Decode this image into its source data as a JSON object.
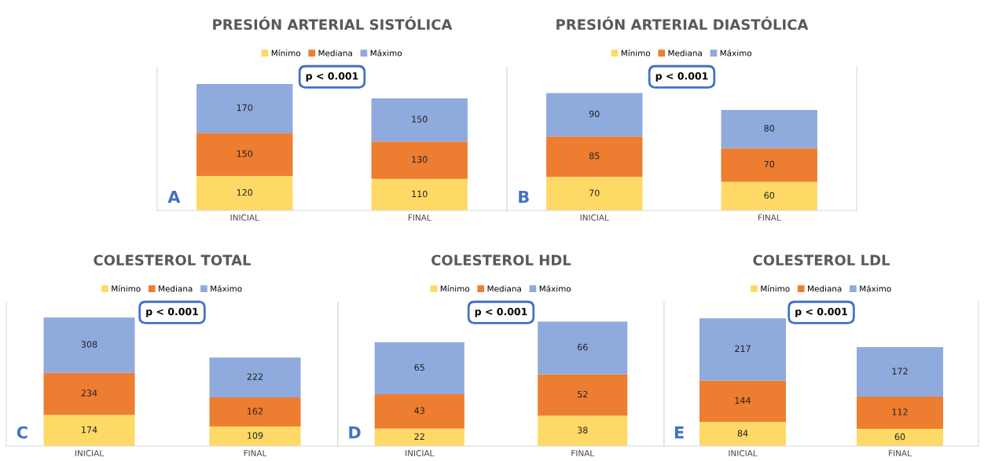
{
  "chart_data": [
    {
      "type": "bar",
      "title": "PRESIÓN ARTERIAL SISTÓLICA",
      "categories": [
        "INICIAL",
        "FINAL"
      ],
      "stacked": true,
      "data_labels": true,
      "legend": "top",
      "tick_labels": "x",
      "ylim": [
        0,
        500
      ],
      "annotations": [
        "A",
        "p < 0.001"
      ],
      "series": [
        {
          "name": "Mínimo",
          "color": "#ffd966",
          "values": [
            120,
            110
          ]
        },
        {
          "name": "Mediana",
          "color": "#ed7d31",
          "values": [
            150,
            130
          ]
        },
        {
          "name": "Máximo",
          "color": "#8faadc",
          "values": [
            170,
            150
          ]
        }
      ]
    },
    {
      "type": "bar",
      "title": "PRESIÓN ARTERIAL DIASTÓLICA",
      "categories": [
        "INICIAL",
        "FINAL"
      ],
      "stacked": true,
      "data_labels": true,
      "legend": "top",
      "tick_labels": "x",
      "ylim": [
        0,
        300
      ],
      "annotations": [
        "B",
        "p < 0.001"
      ],
      "series": [
        {
          "name": "Mínimo",
          "color": "#ffd966",
          "values": [
            70,
            60
          ]
        },
        {
          "name": "Mediana",
          "color": "#ed7d31",
          "values": [
            85,
            70
          ]
        },
        {
          "name": "Máximo",
          "color": "#8faadc",
          "values": [
            90,
            80
          ]
        }
      ]
    },
    {
      "type": "bar",
      "title": "COLESTEROL TOTAL",
      "categories": [
        "INICIAL",
        "FINAL"
      ],
      "stacked": true,
      "data_labels": true,
      "legend": "top",
      "tick_labels": "x",
      "ylim": [
        0,
        800
      ],
      "annotations": [
        "C",
        "p < 0.001"
      ],
      "series": [
        {
          "name": "Mínimo",
          "color": "#ffd966",
          "values": [
            174,
            109
          ]
        },
        {
          "name": "Mediana",
          "color": "#ed7d31",
          "values": [
            234,
            162
          ]
        },
        {
          "name": "Máximo",
          "color": "#8faadc",
          "values": [
            308,
            222
          ]
        }
      ]
    },
    {
      "type": "bar",
      "title": "COLESTEROL HDL",
      "categories": [
        "INICIAL",
        "FINAL"
      ],
      "stacked": true,
      "data_labels": true,
      "legend": "top",
      "tick_labels": "x",
      "ylim": [
        0,
        180
      ],
      "annotations": [
        "D",
        "p < 0.001"
      ],
      "series": [
        {
          "name": "Mínimo",
          "color": "#ffd966",
          "values": [
            22,
            38
          ]
        },
        {
          "name": "Mediana",
          "color": "#ed7d31",
          "values": [
            43,
            52
          ]
        },
        {
          "name": "Máximo",
          "color": "#8faadc",
          "values": [
            65,
            66
          ]
        }
      ]
    },
    {
      "type": "bar",
      "title": "COLESTEROL LDL",
      "categories": [
        "INICIAL",
        "FINAL"
      ],
      "stacked": true,
      "data_labels": true,
      "legend": "top",
      "tick_labels": "x",
      "ylim": [
        0,
        500
      ],
      "annotations": [
        "E",
        "p < 0.001"
      ],
      "series": [
        {
          "name": "Mínimo",
          "color": "#ffd966",
          "values": [
            84,
            60
          ]
        },
        {
          "name": "Mediana",
          "color": "#ed7d31",
          "values": [
            144,
            112
          ]
        },
        {
          "name": "Máximo",
          "color": "#8faadc",
          "values": [
            217,
            172
          ]
        }
      ]
    }
  ]
}
